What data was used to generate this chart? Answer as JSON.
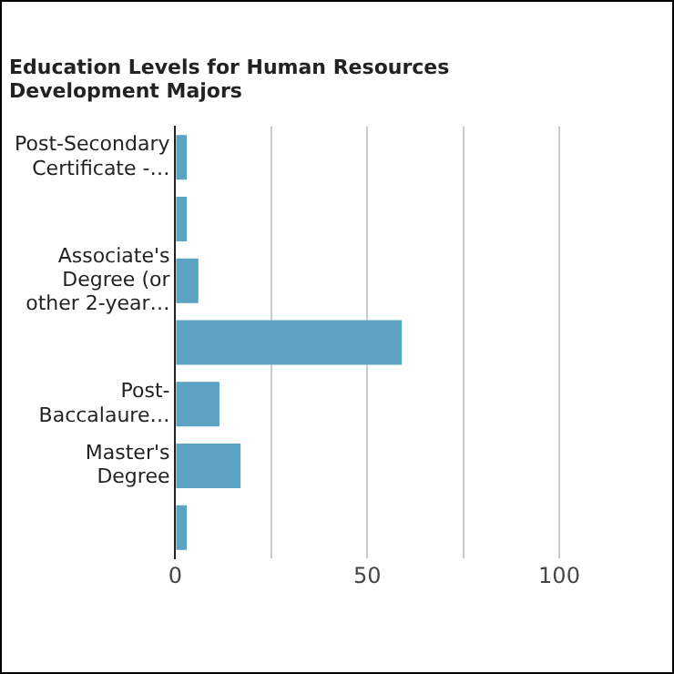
{
  "chart_data": {
    "type": "bar",
    "orientation": "horizontal",
    "title": "Education Levels for Human Resources Development Majors",
    "categories": [
      "Post-Secondary Certificate -…",
      null,
      "Associate's Degree (or other 2-year…",
      null,
      "Post-Baccalaure…",
      "Master's Degree",
      null
    ],
    "values": [
      3,
      3,
      6,
      59,
      11.5,
      17,
      3
    ],
    "color": "#5ba3c0",
    "xlim": [
      0,
      100
    ],
    "xticks": [
      0,
      {
        "value": 25,
        "label": null
      },
      50,
      {
        "value": 75,
        "label": null
      },
      100
    ],
    "grid": "x"
  }
}
